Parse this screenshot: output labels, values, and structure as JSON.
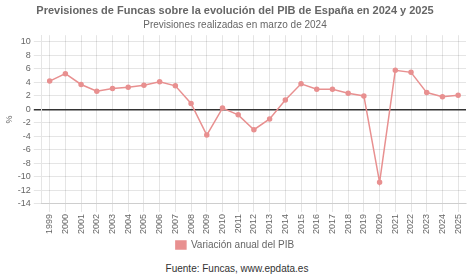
{
  "chart_data": {
    "type": "line",
    "title": "Previsiones de Funcas sobre la evolución del PIB de España en 2024 y 2025",
    "subtitle": "Previsiones realizadas en marzo de 2024",
    "ylabel": "%",
    "source": "Fuente: Funcas, www.epdata.es",
    "categories": [
      "1999",
      "2000",
      "2001",
      "2002",
      "2003",
      "2004",
      "2005",
      "2006",
      "2007",
      "2008",
      "2009",
      "2010",
      "2011",
      "2012",
      "2013",
      "2014",
      "2015",
      "2016",
      "2017",
      "2018",
      "2019",
      "2020",
      "2021",
      "2022",
      "2023",
      "2024",
      "2025"
    ],
    "series": [
      {
        "name": "Variación anual del PIB",
        "color": "#e89090",
        "marker": "circle",
        "values": [
          4.2,
          5.3,
          3.7,
          2.7,
          3.1,
          3.3,
          3.6,
          4.1,
          3.5,
          0.9,
          -3.8,
          0.2,
          -0.8,
          -3.0,
          -1.4,
          1.4,
          3.8,
          3.0,
          3.0,
          2.4,
          2.0,
          -10.8,
          5.8,
          5.5,
          2.5,
          1.9,
          2.1
        ]
      }
    ],
    "ylim": [
      -14,
      11
    ],
    "yticks": [
      -14,
      -12,
      -10,
      -8,
      -6,
      -4,
      -2,
      0,
      2,
      4,
      6,
      8,
      10
    ],
    "grid": true,
    "legend": "bottom"
  }
}
